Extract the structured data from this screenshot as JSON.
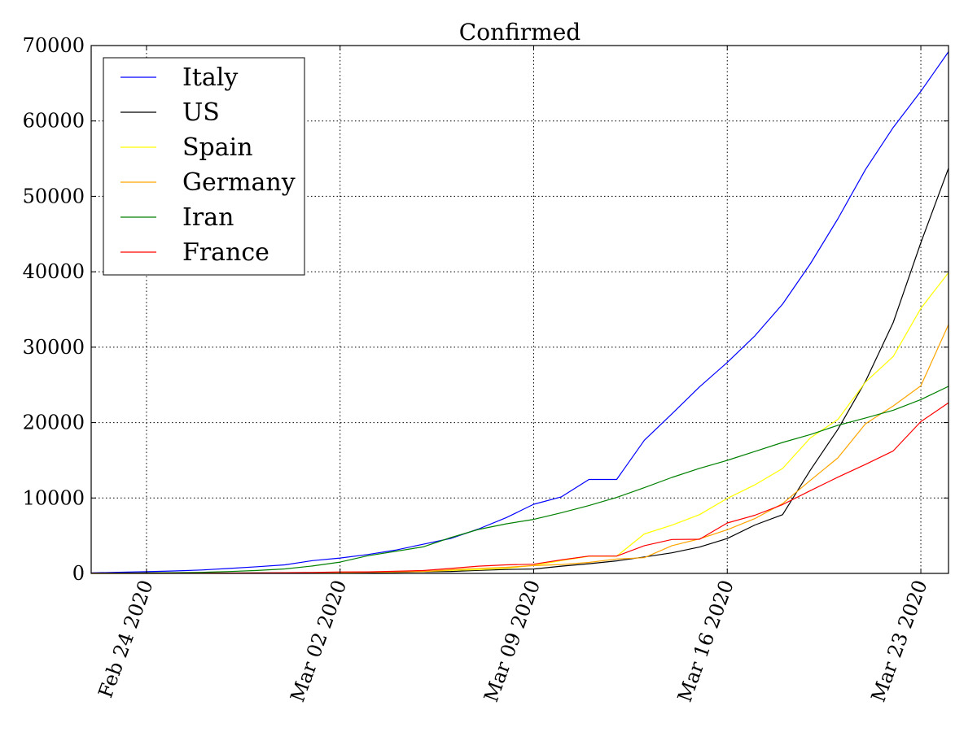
{
  "chart_data": {
    "type": "line",
    "title": "Confirmed",
    "xlabel": "",
    "ylabel": "",
    "ylim": [
      0,
      70000
    ],
    "xlim": [
      "2020-02-22",
      "2020-03-24"
    ],
    "x_tick_labels": [
      {
        "date": "2020-02-24",
        "label": "Feb 24 2020"
      },
      {
        "date": "2020-03-02",
        "label": "Mar 02 2020"
      },
      {
        "date": "2020-03-09",
        "label": "Mar 09 2020"
      },
      {
        "date": "2020-03-16",
        "label": "Mar 16 2020"
      },
      {
        "date": "2020-03-23",
        "label": "Mar 23 2020"
      }
    ],
    "y_ticks": [
      {
        "value": 0,
        "label": "0"
      },
      {
        "value": 10000,
        "label": "10000"
      },
      {
        "value": 20000,
        "label": "20000"
      },
      {
        "value": 30000,
        "label": "30000"
      },
      {
        "value": 40000,
        "label": "40000"
      },
      {
        "value": 50000,
        "label": "50000"
      },
      {
        "value": 60000,
        "label": "60000"
      },
      {
        "value": 70000,
        "label": "70000"
      }
    ],
    "grid": true,
    "legend_position": "top-left",
    "x": [
      "2020-02-22",
      "2020-02-23",
      "2020-02-24",
      "2020-02-25",
      "2020-02-26",
      "2020-02-27",
      "2020-02-28",
      "2020-02-29",
      "2020-03-01",
      "2020-03-02",
      "2020-03-03",
      "2020-03-04",
      "2020-03-05",
      "2020-03-06",
      "2020-03-07",
      "2020-03-08",
      "2020-03-09",
      "2020-03-10",
      "2020-03-11",
      "2020-03-12",
      "2020-03-13",
      "2020-03-14",
      "2020-03-15",
      "2020-03-16",
      "2020-03-17",
      "2020-03-18",
      "2020-03-19",
      "2020-03-20",
      "2020-03-21",
      "2020-03-22",
      "2020-03-23",
      "2020-03-24"
    ],
    "series": [
      {
        "name": "Italy",
        "color": "#0000ff",
        "values": [
          62,
          155,
          229,
          322,
          453,
          655,
          888,
          1128,
          1694,
          2036,
          2502,
          3089,
          3858,
          4636,
          5883,
          7375,
          9172,
          10149,
          12462,
          12462,
          17660,
          21157,
          24747,
          27980,
          31506,
          35713,
          41035,
          47021,
          53578,
          59138,
          63927,
          69176
        ]
      },
      {
        "name": "US",
        "color": "#000000",
        "values": [
          15,
          15,
          51,
          51,
          57,
          58,
          60,
          68,
          74,
          98,
          118,
          149,
          217,
          262,
          402,
          518,
          583,
          959,
          1281,
          1663,
          2179,
          2727,
          3499,
          4632,
          6421,
          7783,
          13677,
          19100,
          25489,
          33276,
          43847,
          53740
        ]
      },
      {
        "name": "Spain",
        "color": "#ffff00",
        "values": [
          2,
          2,
          2,
          6,
          13,
          15,
          32,
          45,
          84,
          120,
          165,
          222,
          259,
          400,
          500,
          673,
          1073,
          1695,
          2277,
          2277,
          5232,
          6391,
          7798,
          9942,
          11748,
          13910,
          17963,
          20410,
          25374,
          28768,
          35136,
          39885
        ]
      },
      {
        "name": "Germany",
        "color": "#ffa500",
        "values": [
          16,
          16,
          16,
          16,
          17,
          27,
          46,
          48,
          79,
          130,
          159,
          196,
          262,
          482,
          670,
          799,
          1040,
          1176,
          1457,
          1908,
          2078,
          3675,
          4585,
          5795,
          7272,
          9257,
          12327,
          15320,
          19848,
          22213,
          24873,
          32991
        ]
      },
      {
        "name": "Iran",
        "color": "#008000",
        "values": [
          28,
          43,
          61,
          95,
          139,
          245,
          388,
          593,
          978,
          1501,
          2336,
          2922,
          3513,
          4747,
          5823,
          6566,
          7161,
          8042,
          9000,
          10075,
          11364,
          12729,
          13938,
          14991,
          16169,
          17361,
          18407,
          19644,
          20610,
          21638,
          23049,
          24811
        ]
      },
      {
        "name": "France",
        "color": "#ff0000",
        "values": [
          12,
          12,
          12,
          14,
          18,
          38,
          57,
          100,
          130,
          191,
          204,
          288,
          380,
          656,
          959,
          1136,
          1219,
          1794,
          2293,
          2293,
          3681,
          4496,
          4532,
          6683,
          7715,
          9124,
          10970,
          12758,
          14463,
          16243,
          20123,
          22622
        ]
      }
    ]
  }
}
